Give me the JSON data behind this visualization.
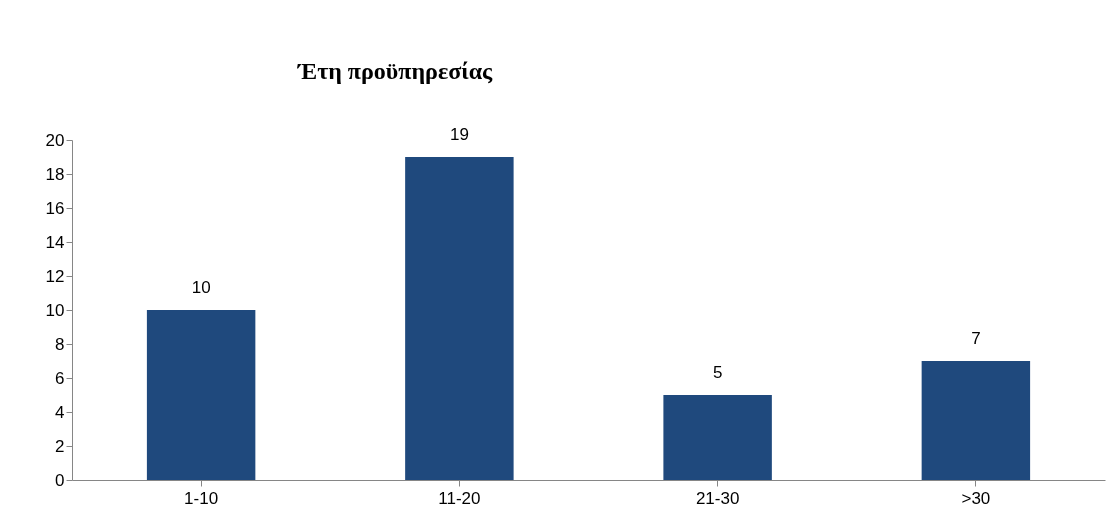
{
  "chart_data": {
    "type": "bar",
    "title": "Έτη προϋπηρεσίας",
    "categories": [
      "1-10",
      "11-20",
      "21-30",
      ">30"
    ],
    "values": [
      10,
      19,
      5,
      7
    ],
    "color": "#1f497d",
    "ylim": [
      0,
      20
    ],
    "yticks": [
      0,
      2,
      4,
      6,
      8,
      10,
      12,
      14,
      16,
      18,
      20
    ],
    "data_labels": true,
    "grid": false
  }
}
